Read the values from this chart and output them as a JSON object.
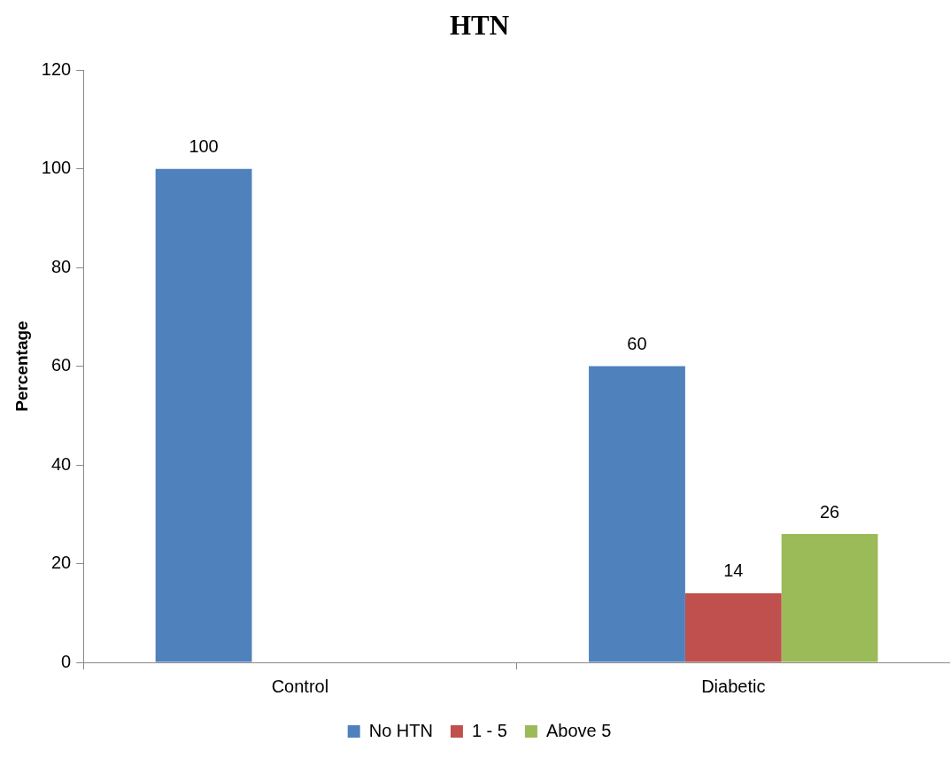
{
  "chart_data": {
    "type": "bar",
    "title": "HTN",
    "ylabel": "Percentage",
    "categories": [
      "Control",
      "Diabetic"
    ],
    "series": [
      {
        "name": "No HTN",
        "color": "#4f81bd",
        "values": [
          100,
          60
        ]
      },
      {
        "name": "1 - 5",
        "color": "#c0504d",
        "values": [
          null,
          14
        ]
      },
      {
        "name": "Above 5",
        "color": "#9bbb59",
        "values": [
          null,
          26
        ]
      }
    ],
    "ylim": [
      0,
      120
    ],
    "yticks": [
      0,
      20,
      40,
      60,
      80,
      100,
      120
    ],
    "grid": false,
    "legend": "bottom",
    "data_labels": true
  }
}
